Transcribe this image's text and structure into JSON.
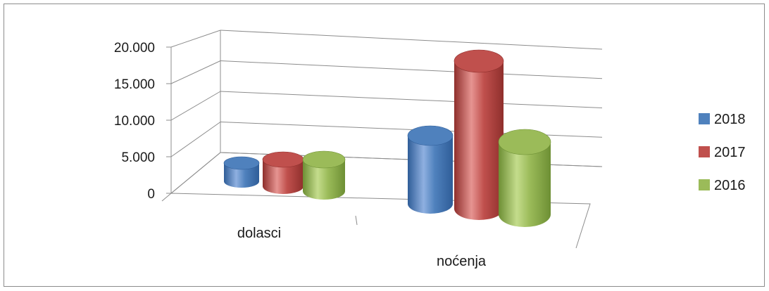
{
  "chart_data": {
    "type": "bar",
    "categories": [
      "dolasci",
      "noćenja"
    ],
    "series": [
      {
        "name": "2018",
        "values": [
          2600,
          8200
        ]
      },
      {
        "name": "2017",
        "values": [
          2900,
          18300
        ]
      },
      {
        "name": "2016",
        "values": [
          2800,
          10700
        ]
      }
    ],
    "y_ticks": [
      "0",
      "5.000",
      "10.000",
      "15.000",
      "20.000"
    ],
    "ylim": [
      0,
      20000
    ],
    "grid": true,
    "legend_position": "right",
    "colors": [
      "#4f81bd",
      "#c0504d",
      "#9bbb59"
    ],
    "dark_colors": [
      "#2f5d98",
      "#8f2f2c",
      "#6d8f34"
    ],
    "light_colors": [
      "#8fb0e0",
      "#e69491",
      "#c4dc8c"
    ]
  }
}
